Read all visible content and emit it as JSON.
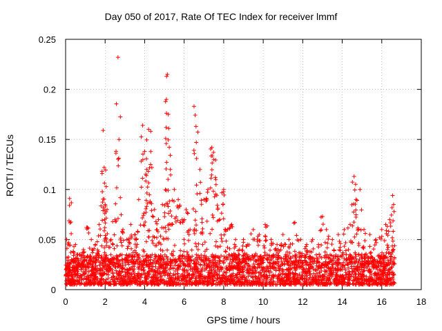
{
  "chart_data": {
    "type": "scatter",
    "title": "Day 050 of 2017, Rate Of TEC Index for receiver lmmf",
    "xlabel": "GPS time / hours",
    "ylabel": "ROTI / TECUs",
    "xlim": [
      0,
      18
    ],
    "ylim": [
      0,
      0.25
    ],
    "x_ticks": [
      0,
      2,
      4,
      6,
      8,
      10,
      12,
      14,
      16,
      18
    ],
    "x_tick_labels": [
      "0",
      "2",
      "4",
      "6",
      "8",
      "10",
      "12",
      "14",
      "16",
      "18"
    ],
    "y_ticks": [
      0,
      0.05,
      0.1,
      0.15,
      0.2,
      0.25
    ],
    "y_tick_labels": [
      "0",
      "0.05",
      "0.1",
      "0.15",
      "0.2",
      "0.25"
    ],
    "grid": true,
    "marker": "+",
    "series": [
      {
        "name": "ROTI",
        "color": "#ff0000",
        "x": [
          0.05,
          0.1,
          0.2,
          0.3,
          0.5,
          0.7,
          0.9,
          1.1,
          1.3,
          1.5,
          1.7,
          1.9,
          1.95,
          2.0,
          2.1,
          2.3,
          2.5,
          2.65,
          2.7,
          2.9,
          3.1,
          3.3,
          3.5,
          3.7,
          3.9,
          4.0,
          4.1,
          4.2,
          4.3,
          4.5,
          4.7,
          4.9,
          5.1,
          5.15,
          5.2,
          5.3,
          5.5,
          5.7,
          5.9,
          6.1,
          6.3,
          6.5,
          6.6,
          6.8,
          7.0,
          7.2,
          7.4,
          7.5,
          7.6,
          7.8,
          8.0,
          8.2,
          8.4,
          8.6,
          8.8,
          9.0,
          9.2,
          9.5,
          9.8,
          10.1,
          10.4,
          10.7,
          11.0,
          11.3,
          11.6,
          11.9,
          12.2,
          12.5,
          12.8,
          13.0,
          13.2,
          13.5,
          13.8,
          14.1,
          14.4,
          14.6,
          14.7,
          14.9,
          15.1,
          15.4,
          15.7,
          16.0,
          16.2,
          16.4,
          16.55,
          16.6
        ],
        "y": [
          0.05,
          0.02,
          0.091,
          0.03,
          0.045,
          0.035,
          0.04,
          0.062,
          0.05,
          0.045,
          0.065,
          0.159,
          0.122,
          0.085,
          0.08,
          0.05,
          0.07,
          0.232,
          0.15,
          0.06,
          0.05,
          0.065,
          0.055,
          0.09,
          0.164,
          0.138,
          0.12,
          0.16,
          0.125,
          0.08,
          0.07,
          0.085,
          0.19,
          0.215,
          0.175,
          0.12,
          0.1,
          0.09,
          0.07,
          0.08,
          0.06,
          0.183,
          0.163,
          0.12,
          0.09,
          0.1,
          0.142,
          0.13,
          0.11,
          0.07,
          0.1,
          0.06,
          0.065,
          0.05,
          0.04,
          0.05,
          0.045,
          0.06,
          0.055,
          0.065,
          0.05,
          0.045,
          0.055,
          0.05,
          0.067,
          0.05,
          0.045,
          0.05,
          0.045,
          0.073,
          0.06,
          0.05,
          0.055,
          0.06,
          0.065,
          0.113,
          0.09,
          0.1,
          0.06,
          0.055,
          0.05,
          0.06,
          0.065,
          0.07,
          0.094,
          0.085
        ]
      }
    ],
    "baseline_band": {
      "x_range": [
        0,
        16.65
      ],
      "y_range": [
        0.005,
        0.035
      ],
      "description": "dense cluster of points"
    }
  }
}
